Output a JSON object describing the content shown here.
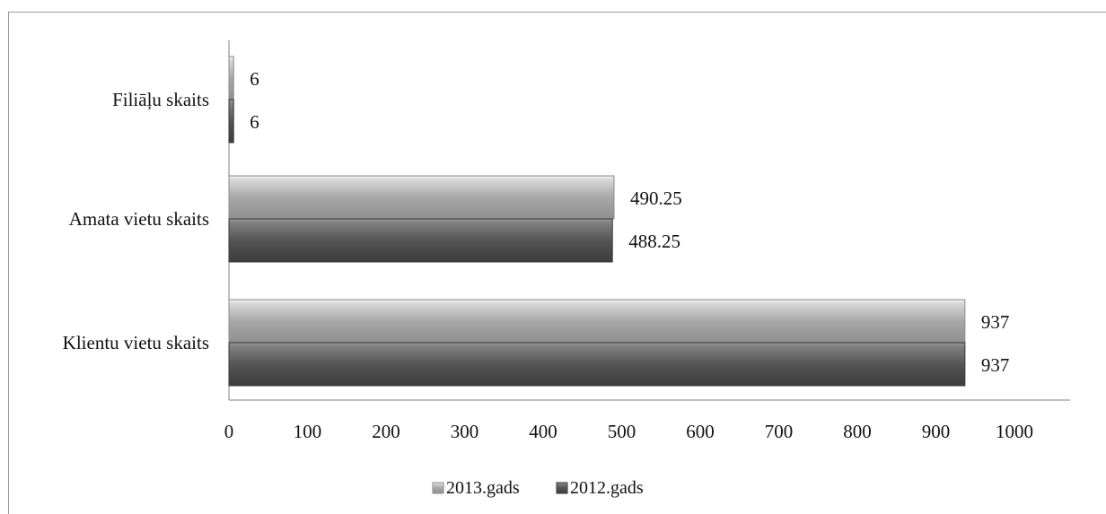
{
  "chart_data": {
    "type": "bar",
    "orientation": "horizontal",
    "categories": [
      "Klientu vietu skaits",
      "Amata vietu skaits",
      "Filiāļu skaits"
    ],
    "series": [
      {
        "name": "2013.gads",
        "values": [
          937,
          490.25,
          6
        ],
        "color": "#a9a9a9"
      },
      {
        "name": "2012.gads",
        "values": [
          937,
          488.25,
          6
        ],
        "color": "#5a5a5a"
      }
    ],
    "xlim": [
      0,
      1000
    ],
    "xticks": [
      0,
      100,
      200,
      300,
      400,
      500,
      600,
      700,
      800,
      900,
      1000
    ],
    "data_labels": [
      "937",
      "490.25",
      "6",
      "937",
      "488.25",
      "6"
    ],
    "grid": false,
    "legend_position": "bottom"
  }
}
